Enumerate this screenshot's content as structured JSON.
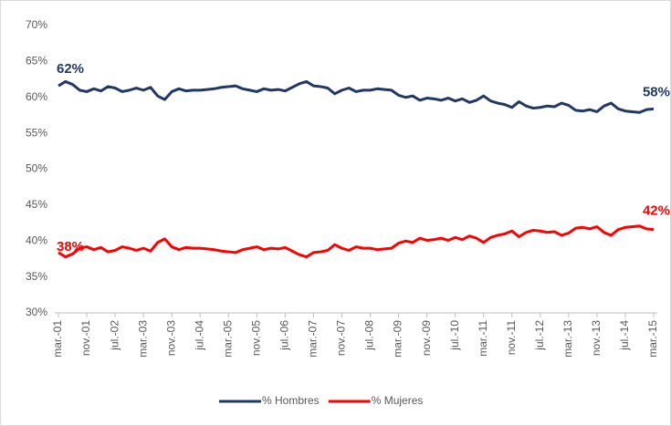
{
  "chart_data": {
    "type": "line",
    "categories": [
      "mar.-01",
      null,
      null,
      null,
      "nov.-01",
      null,
      null,
      null,
      "jul.-02",
      null,
      null,
      null,
      "mar.-03",
      null,
      null,
      null,
      "nov.-03",
      null,
      null,
      null,
      "jul.-04",
      null,
      null,
      null,
      "mar.-05",
      null,
      null,
      null,
      "nov.-05",
      null,
      null,
      null,
      "jul.-06",
      null,
      null,
      null,
      "mar.-07",
      null,
      null,
      null,
      "nov.-07",
      null,
      null,
      null,
      "jul.-08",
      null,
      null,
      null,
      "mar.-09",
      null,
      null,
      null,
      "nov.-09",
      null,
      null,
      null,
      "jul.-10",
      null,
      null,
      null,
      "mar.-11",
      null,
      null,
      null,
      "nov.-11",
      null,
      null,
      null,
      "jul.-12",
      null,
      null,
      null,
      "mar.-13",
      null,
      null,
      null,
      "nov.-13",
      null,
      null,
      null,
      "jul.-14",
      null,
      null,
      null,
      "mar.-15"
    ],
    "series": [
      {
        "name": "% Hombres",
        "color": "#1f3864",
        "values": [
          61.6,
          62.2,
          61.8,
          61.0,
          60.8,
          61.2,
          60.9,
          61.5,
          61.3,
          60.8,
          61.0,
          61.3,
          61.0,
          61.4,
          60.2,
          59.7,
          60.8,
          61.2,
          60.9,
          61.0,
          61.0,
          61.1,
          61.2,
          61.4,
          61.5,
          61.6,
          61.2,
          61.0,
          60.8,
          61.2,
          61.0,
          61.1,
          60.9,
          61.4,
          61.9,
          62.2,
          61.6,
          61.5,
          61.3,
          60.5,
          61.0,
          61.3,
          60.8,
          61.0,
          61.0,
          61.2,
          61.1,
          61.0,
          60.3,
          60.0,
          60.2,
          59.6,
          59.9,
          59.8,
          59.6,
          59.9,
          59.5,
          59.8,
          59.3,
          59.6,
          60.2,
          59.5,
          59.2,
          59.0,
          58.6,
          59.4,
          58.8,
          58.5,
          58.6,
          58.8,
          58.7,
          59.2,
          58.9,
          58.2,
          58.1,
          58.3,
          58.0,
          58.8,
          59.2,
          58.4,
          58.1,
          58.0,
          57.9,
          58.3,
          58.4
        ],
        "value_labels": [
          "62%",
          null,
          null,
          null,
          null,
          null,
          null,
          null,
          null,
          null,
          null,
          null,
          null,
          null,
          null,
          null,
          null,
          null,
          null,
          null,
          null,
          null,
          null,
          null,
          null,
          null,
          null,
          null,
          null,
          null,
          null,
          null,
          null,
          null,
          null,
          null,
          null,
          null,
          null,
          null,
          null,
          null,
          null,
          null,
          null,
          null,
          null,
          null,
          null,
          null,
          null,
          null,
          null,
          null,
          null,
          null,
          null,
          null,
          null,
          null,
          null,
          null,
          null,
          null,
          null,
          null,
          null,
          null,
          null,
          null,
          null,
          null,
          null,
          null,
          null,
          null,
          null,
          null,
          null,
          null,
          null,
          null,
          null,
          null,
          "58%"
        ]
      },
      {
        "name": "% Mujeres",
        "color": "#ff0000",
        "values": [
          38.4,
          37.8,
          38.2,
          39.0,
          39.2,
          38.8,
          39.1,
          38.5,
          38.7,
          39.2,
          39.0,
          38.7,
          39.0,
          38.6,
          39.8,
          40.3,
          39.2,
          38.8,
          39.1,
          39.0,
          39.0,
          38.9,
          38.8,
          38.6,
          38.5,
          38.4,
          38.8,
          39.0,
          39.2,
          38.8,
          39.0,
          38.9,
          39.1,
          38.6,
          38.1,
          37.8,
          38.4,
          38.5,
          38.7,
          39.5,
          39.0,
          38.7,
          39.2,
          39.0,
          39.0,
          38.8,
          38.9,
          39.0,
          39.7,
          40.0,
          39.8,
          40.4,
          40.1,
          40.2,
          40.4,
          40.1,
          40.5,
          40.2,
          40.7,
          40.4,
          39.8,
          40.5,
          40.8,
          41.0,
          41.4,
          40.6,
          41.2,
          41.5,
          41.4,
          41.2,
          41.3,
          40.8,
          41.1,
          41.8,
          41.9,
          41.7,
          42.0,
          41.2,
          40.8,
          41.6,
          41.9,
          42.0,
          42.1,
          41.7,
          41.6
        ],
        "value_labels": [
          "38%",
          null,
          null,
          null,
          null,
          null,
          null,
          null,
          null,
          null,
          null,
          null,
          null,
          null,
          null,
          null,
          null,
          null,
          null,
          null,
          null,
          null,
          null,
          null,
          null,
          null,
          null,
          null,
          null,
          null,
          null,
          null,
          null,
          null,
          null,
          null,
          null,
          null,
          null,
          null,
          null,
          null,
          null,
          null,
          null,
          null,
          null,
          null,
          null,
          null,
          null,
          null,
          null,
          null,
          null,
          null,
          null,
          null,
          null,
          null,
          null,
          null,
          null,
          null,
          null,
          null,
          null,
          null,
          null,
          null,
          null,
          null,
          null,
          null,
          null,
          null,
          null,
          null,
          null,
          null,
          null,
          null,
          null,
          null,
          "42%"
        ]
      }
    ],
    "ylim": [
      30,
      70
    ],
    "yticks": [
      {
        "value": 30,
        "label": "30%"
      },
      {
        "value": 35,
        "label": "35%"
      },
      {
        "value": 40,
        "label": "40%"
      },
      {
        "value": 45,
        "label": "45%"
      },
      {
        "value": 50,
        "label": "50%"
      },
      {
        "value": 55,
        "label": "55%"
      },
      {
        "value": 60,
        "label": "60%"
      },
      {
        "value": 65,
        "label": "65%"
      },
      {
        "value": 70,
        "label": "70%"
      }
    ],
    "grid": false,
    "legend": "bottom"
  }
}
